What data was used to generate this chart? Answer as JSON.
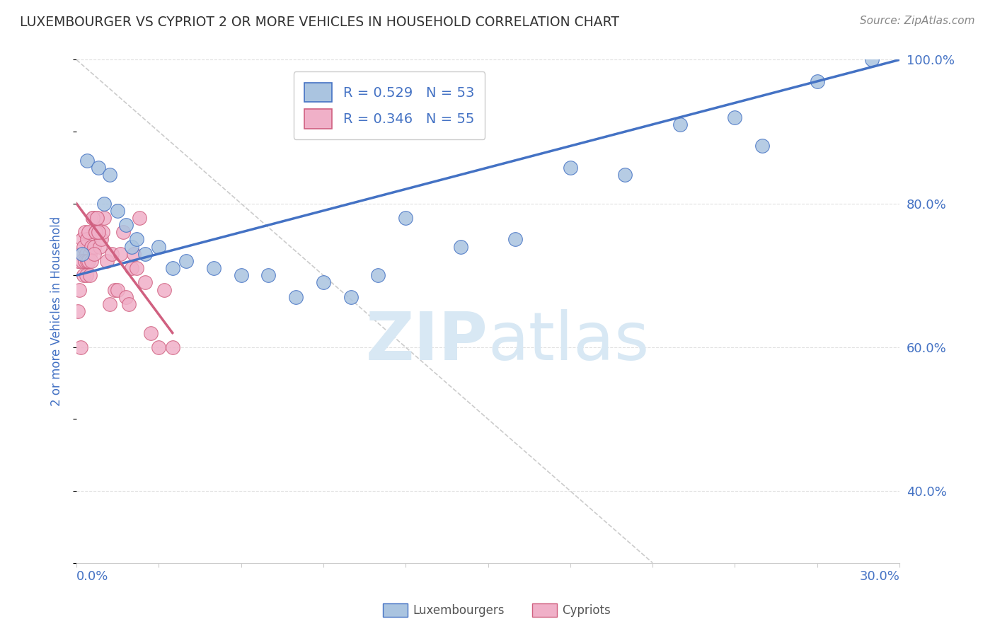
{
  "title": "LUXEMBOURGER VS CYPRIOT 2 OR MORE VEHICLES IN HOUSEHOLD CORRELATION CHART",
  "source": "Source: ZipAtlas.com",
  "ylabel": "2 or more Vehicles in Household",
  "xlim": [
    0.0,
    30.0
  ],
  "ylim": [
    30.0,
    100.0
  ],
  "yticks": [
    40.0,
    60.0,
    80.0,
    100.0
  ],
  "ytick_labels": [
    "40.0%",
    "60.0%",
    "80.0%",
    "100.0%"
  ],
  "yticks_right": [
    40.0,
    60.0,
    80.0,
    100.0
  ],
  "ytick_labels_right": [
    "40.0%",
    "60.0%",
    "80.0%",
    "100.0%"
  ],
  "lux_color": "#aac4e0",
  "cyp_color": "#f0b0c8",
  "lux_edge_color": "#4472c4",
  "cyp_edge_color": "#d06080",
  "lux_line_color": "#4472c4",
  "cyp_line_color": "#d06080",
  "ref_line_color": "#cccccc",
  "grid_color": "#e0e0e0",
  "background_color": "#ffffff",
  "title_color": "#333333",
  "tick_label_color": "#4472c4",
  "watermark_color": "#d8e8f4",
  "lux_scatter_x": [
    0.2,
    0.4,
    0.8,
    1.0,
    1.2,
    1.5,
    1.8,
    2.0,
    2.2,
    2.5,
    3.0,
    3.5,
    4.0,
    5.0,
    6.0,
    7.0,
    8.0,
    9.0,
    10.0,
    11.0,
    12.0,
    14.0,
    16.0,
    18.0,
    20.0,
    22.0,
    24.0,
    25.0,
    27.0,
    29.0
  ],
  "lux_scatter_y": [
    73,
    86,
    85,
    80,
    84,
    79,
    77,
    74,
    75,
    73,
    74,
    71,
    72,
    71,
    70,
    70,
    67,
    69,
    67,
    70,
    78,
    74,
    75,
    85,
    84,
    91,
    92,
    88,
    97,
    100
  ],
  "cyp_scatter_x": [
    0.05,
    0.1,
    0.15,
    0.2,
    0.25,
    0.3,
    0.35,
    0.4,
    0.45,
    0.5,
    0.55,
    0.6,
    0.65,
    0.7,
    0.75,
    0.8,
    0.85,
    0.9,
    0.95,
    1.0,
    1.1,
    1.2,
    1.3,
    1.4,
    1.5,
    1.6,
    1.7,
    1.8,
    1.9,
    2.0,
    2.1,
    2.2,
    2.3,
    2.5,
    2.7,
    3.0,
    3.2,
    3.5,
    0.05,
    0.1,
    0.15,
    0.2,
    0.25,
    0.3,
    0.35,
    0.4,
    0.45,
    0.5,
    0.55,
    0.6,
    0.65,
    0.7,
    0.75,
    0.8
  ],
  "cyp_scatter_y": [
    72,
    72,
    73,
    75,
    74,
    76,
    73,
    75,
    76,
    73,
    74,
    78,
    74,
    76,
    78,
    76,
    74,
    75,
    76,
    78,
    72,
    66,
    73,
    68,
    68,
    73,
    76,
    67,
    66,
    71,
    73,
    71,
    78,
    69,
    62,
    60,
    68,
    60,
    65,
    68,
    60,
    72,
    70,
    72,
    70,
    72,
    72,
    70,
    72,
    78,
    73,
    76,
    78,
    76
  ],
  "lux_trend_x0": 0.0,
  "lux_trend_y0": 70.0,
  "lux_trend_x1": 30.0,
  "lux_trend_y1": 100.0,
  "cyp_trend_x0": 0.0,
  "cyp_trend_y0": 80.0,
  "cyp_trend_x1": 3.5,
  "cyp_trend_y1": 62.0,
  "ref_diag_x0": 0.0,
  "ref_diag_y0": 100.0,
  "ref_diag_x1": 21.0,
  "ref_diag_y1": 30.0
}
